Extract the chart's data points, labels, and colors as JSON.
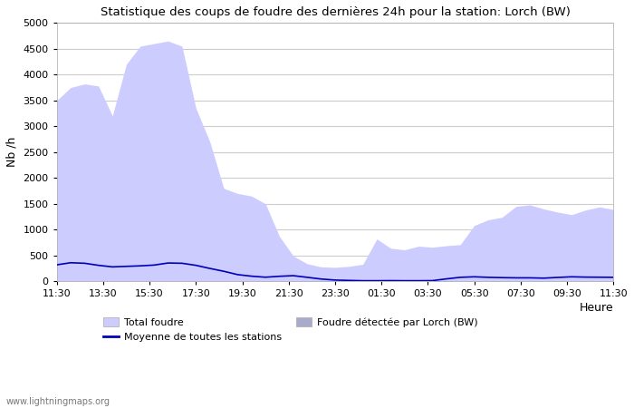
{
  "title": "Statistique des coups de foudre des dernières 24h pour la station: Lorch (BW)",
  "xlabel": "Heure",
  "ylabel": "Nb /h",
  "watermark": "www.lightningmaps.org",
  "ylim": [
    0,
    5000
  ],
  "yticks": [
    0,
    500,
    1000,
    1500,
    2000,
    2500,
    3000,
    3500,
    4000,
    4500,
    5000
  ],
  "xtick_labels": [
    "11:30",
    "13:30",
    "15:30",
    "17:30",
    "19:30",
    "21:30",
    "23:30",
    "01:30",
    "03:30",
    "05:30",
    "07:30",
    "09:30",
    "11:30"
  ],
  "bg_color": "#ffffff",
  "grid_color": "#cccccc",
  "total_foudre_color": "#ccccff",
  "lorch_color": "#aaaacc",
  "moyenne_color": "#0000bb",
  "total_foudre_values": [
    3500,
    3750,
    3820,
    3780,
    3200,
    4200,
    4550,
    4600,
    4650,
    4550,
    3350,
    2700,
    1800,
    1700,
    1650,
    1500,
    870,
    490,
    340,
    280,
    270,
    290,
    330,
    820,
    640,
    610,
    680,
    660,
    690,
    710,
    1080,
    1190,
    1240,
    1450,
    1480,
    1400,
    1340,
    1290,
    1380,
    1440,
    1390
  ],
  "lorch_values": [
    0,
    0,
    0,
    0,
    0,
    0,
    0,
    0,
    0,
    0,
    0,
    0,
    0,
    0,
    0,
    0,
    0,
    0,
    0,
    0,
    0,
    0,
    0,
    0,
    0,
    0,
    0,
    0,
    0,
    0,
    0,
    0,
    0,
    0,
    0,
    0,
    0,
    0,
    0,
    0,
    0
  ],
  "moyenne_values": [
    320,
    360,
    350,
    310,
    280,
    290,
    300,
    315,
    355,
    350,
    310,
    250,
    195,
    130,
    100,
    80,
    98,
    110,
    78,
    45,
    25,
    18,
    12,
    12,
    14,
    12,
    12,
    14,
    48,
    78,
    88,
    78,
    72,
    68,
    68,
    62,
    76,
    88,
    82,
    80,
    78
  ],
  "legend_total": "Total foudre",
  "legend_moyenne": "Moyenne de toutes les stations",
  "legend_lorch": "Foudre détectée par Lorch (BW)"
}
